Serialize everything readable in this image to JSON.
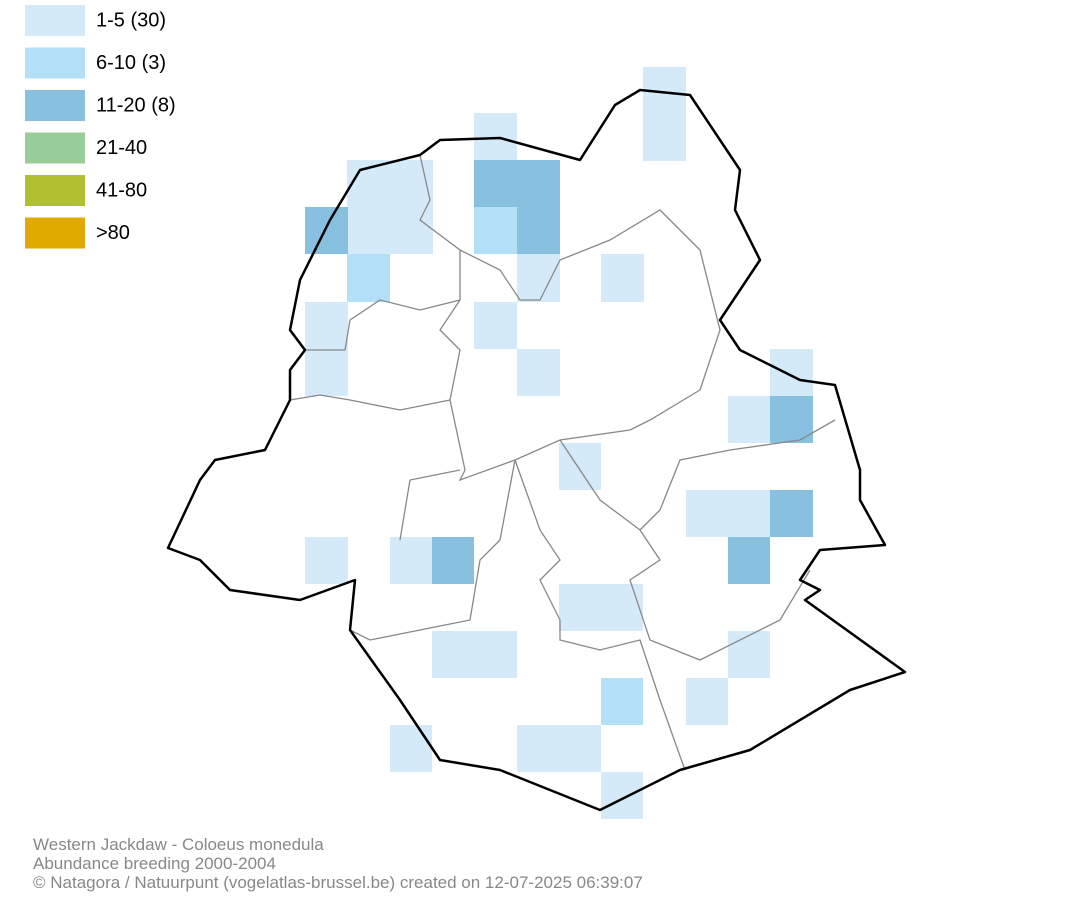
{
  "legend": [
    {
      "label": "1-5 (30)",
      "color": "#d4eaf8"
    },
    {
      "label": "6-10 (3)",
      "color": "#b3e0f7"
    },
    {
      "label": "11-20 (8)",
      "color": "#88c1e0"
    },
    {
      "label": "21-40",
      "color": "#98cc98"
    },
    {
      "label": "41-80",
      "color": "#b0c030"
    },
    {
      "label": ">80",
      "color": "#e0aa00"
    }
  ],
  "footer": [
    "Western Jackdaw - Coloeus monedula",
    "Abundance breeding 2000-2004",
    "© Natagora / Natuurpunt (vogelatlas-brussel.be) created on 12-07-2025 06:39:07"
  ]
}
